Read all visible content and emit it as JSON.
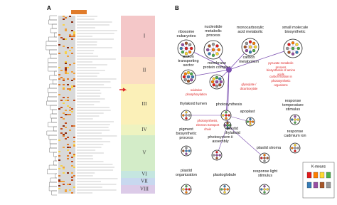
{
  "panels": {
    "a": "A",
    "b": "B"
  },
  "clusters": [
    "I",
    "II",
    "III",
    "IV",
    "V",
    "VI",
    "VII",
    "VIII"
  ],
  "nodes": [
    {
      "label": "ribosome eukaryotes"
    },
    {
      "label": "nucleotide metabolic process"
    },
    {
      "label": "monocarboxylic acid metabolic"
    },
    {
      "label": "small molecule biosynthetic"
    },
    {
      "label": "proton transporting sector"
    },
    {
      "label": "membrane protein complex"
    },
    {
      "label": "carbon metabolism"
    },
    {
      "label": "thylakoid lumen"
    },
    {
      "label": "photosynthesis"
    },
    {
      "label": "apoplast"
    },
    {
      "label": "response temperature stimulus"
    },
    {
      "label": "plastid thylakoid"
    },
    {
      "label": "pigment biosynthetic process"
    },
    {
      "label": "photosystem ii assembly"
    },
    {
      "label": "plastid stroma"
    },
    {
      "label": "response cadmium ion"
    },
    {
      "label": "plastid organization"
    },
    {
      "label": "plastoglobule"
    },
    {
      "label": "response light stimulus"
    }
  ],
  "annotations": [
    "oxidative phosphorylation",
    "pyruvate metabolic process",
    "biosynthesis of amino acids",
    "carbon fixation in photosynthetic organisms",
    "glyoxylate / dicarboxylate",
    "photosynthesis, electron transport chain"
  ],
  "legend": {
    "title": "K-means"
  }
}
